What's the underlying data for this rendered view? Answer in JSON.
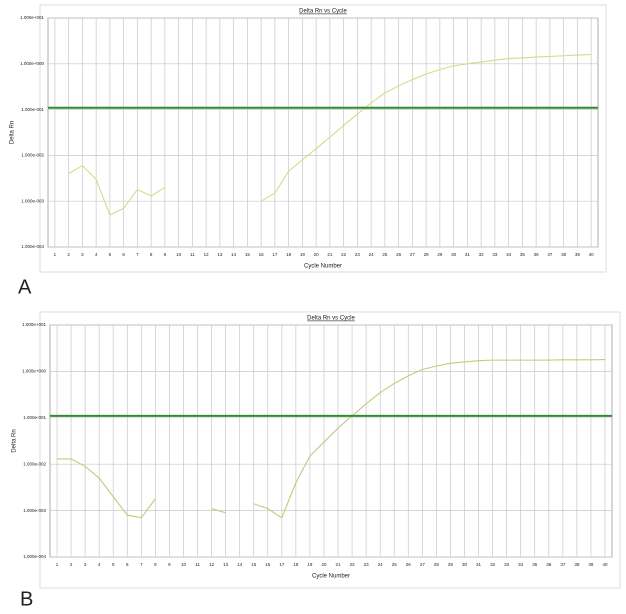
{
  "chart_data": [
    {
      "type": "line",
      "panel_label": "A",
      "title": "Delta Rn vs Cycle",
      "x_label": "Cycle Number",
      "y_label": "Delta Rn",
      "x": [
        1,
        2,
        3,
        4,
        5,
        6,
        7,
        8,
        9,
        10,
        11,
        12,
        13,
        14,
        15,
        16,
        17,
        18,
        19,
        20,
        21,
        22,
        23,
        24,
        25,
        26,
        27,
        28,
        29,
        30,
        31,
        32,
        33,
        34,
        35,
        36,
        37,
        38,
        39,
        40
      ],
      "series": [
        {
          "color": "#d9d98c",
          "values": [
            null,
            0.004,
            0.006,
            0.003,
            0.0005,
            0.0007,
            0.0018,
            0.0013,
            0.002,
            null,
            null,
            null,
            null,
            null,
            null,
            0.001,
            0.0015,
            0.0045,
            0.008,
            0.014,
            0.025,
            0.045,
            0.08,
            0.14,
            0.23,
            0.33,
            0.45,
            0.6,
            0.75,
            0.9,
            1.0,
            1.1,
            1.2,
            1.3,
            1.35,
            1.4,
            1.45,
            1.5,
            1.55,
            1.6
          ]
        }
      ],
      "threshold": 0.11,
      "threshold_color": "#2e8b2e",
      "xlim": [
        0.5,
        40.5
      ],
      "xticks": [
        1,
        2,
        3,
        4,
        5,
        6,
        7,
        8,
        9,
        10,
        11,
        12,
        13,
        14,
        15,
        16,
        17,
        18,
        19,
        20,
        21,
        22,
        23,
        24,
        25,
        26,
        27,
        28,
        29,
        30,
        31,
        32,
        33,
        34,
        35,
        36,
        37,
        38,
        39,
        40
      ],
      "ylim": [
        0.0001,
        10
      ],
      "log_y": true,
      "grid": true,
      "yticks": [
        {
          "value": 0.0001,
          "label": "1.000e-004"
        },
        {
          "value": 0.001,
          "label": "1.000e-003"
        },
        {
          "value": 0.01,
          "label": "1.000e-002"
        },
        {
          "value": 0.1,
          "label": "1.000e-001"
        },
        {
          "value": 1,
          "label": "1.000e+000"
        },
        {
          "value": 10,
          "label": "1.000e+001"
        }
      ]
    },
    {
      "type": "line",
      "panel_label": "B",
      "title": "Delta Rn vs Cycle",
      "x_label": "Cycle Number",
      "y_label": "Delta Rn",
      "x": [
        1,
        2,
        3,
        4,
        5,
        6,
        7,
        8,
        9,
        10,
        11,
        12,
        13,
        14,
        15,
        16,
        17,
        18,
        19,
        20,
        21,
        22,
        23,
        24,
        25,
        26,
        27,
        28,
        29,
        30,
        31,
        32,
        33,
        34,
        35,
        36,
        37,
        38,
        39,
        40
      ],
      "series": [
        {
          "color": "#c8c87a",
          "values": [
            0.013,
            0.013,
            0.009,
            0.005,
            0.002,
            0.0008,
            0.0007,
            0.0018,
            null,
            null,
            null,
            0.0011,
            0.0009,
            null,
            0.0014,
            0.0011,
            0.0007,
            0.004,
            0.015,
            0.03,
            0.06,
            0.11,
            0.2,
            0.35,
            0.55,
            0.8,
            1.1,
            1.3,
            1.5,
            1.6,
            1.7,
            1.75,
            1.75,
            1.75,
            1.75,
            1.75,
            1.78,
            1.78,
            1.78,
            1.8
          ]
        }
      ],
      "threshold": 0.11,
      "threshold_color": "#2e8b2e",
      "xlim": [
        0.5,
        40.5
      ],
      "xticks": [
        1,
        2,
        3,
        4,
        5,
        6,
        7,
        8,
        9,
        10,
        11,
        12,
        13,
        14,
        15,
        16,
        17,
        18,
        19,
        20,
        21,
        22,
        23,
        24,
        25,
        26,
        27,
        28,
        29,
        30,
        31,
        32,
        33,
        34,
        35,
        36,
        37,
        38,
        39,
        40
      ],
      "ylim": [
        0.0001,
        10
      ],
      "log_y": true,
      "grid": true,
      "yticks": [
        {
          "value": 0.0001,
          "label": "1.000e-004"
        },
        {
          "value": 0.001,
          "label": "1.000e-003"
        },
        {
          "value": 0.01,
          "label": "1.000e-002"
        },
        {
          "value": 0.1,
          "label": "1.000e-001"
        },
        {
          "value": 1,
          "label": "1.000e+000"
        },
        {
          "value": 10,
          "label": "1.000e+001"
        }
      ]
    }
  ]
}
